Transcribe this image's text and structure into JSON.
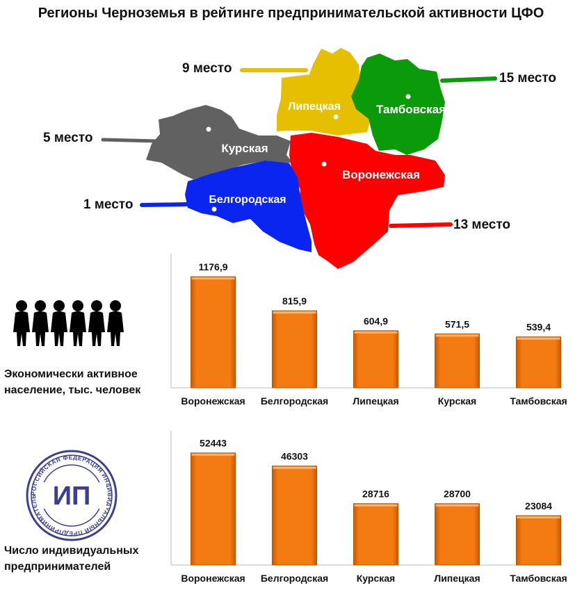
{
  "title": "Регионы Черноземья в рейтинге предпринимательской активности ЦФО",
  "colors": {
    "kursk": "#616161",
    "lipetsk": "#e6bf00",
    "tambov": "#0a9a0a",
    "voronezh": "#ff0000",
    "belgorod": "#0a25f0",
    "bar": "#f47a12"
  },
  "map": {
    "regions": [
      {
        "key": "lipetsk",
        "name": "Липецкая",
        "rank": "9 место"
      },
      {
        "key": "tambov",
        "name": "Тамбовская",
        "rank": "15 место"
      },
      {
        "key": "kursk",
        "name": "Курская",
        "rank": "5 место"
      },
      {
        "key": "voronezh",
        "name": "Воронежская",
        "rank": "13 место"
      },
      {
        "key": "belgorod",
        "name": "Белгородская",
        "rank": "1 место"
      }
    ]
  },
  "population_caption": "Экономически активное население, тыс. человек",
  "ip_caption": "Число индивидуальных предпринимателей",
  "ip_logo": {
    "letters": "ИП",
    "ring_text": "РОССИЙСКАЯ ФЕДЕРАЦИЯ ИНДИВИДУАЛЬНЫЙ ПРЕДПРИНИМАТЕЛЬ ОГРНИП"
  },
  "chart_data": [
    {
      "type": "bar",
      "title": "Экономически активное население, тыс. человек",
      "categories": [
        "Воронежская",
        "Белгородская",
        "Липецкая",
        "Курская",
        "Тамбовская"
      ],
      "values": [
        1176.9,
        815.9,
        604.9,
        571.5,
        539.4
      ],
      "labels": [
        "1176,9",
        "815,9",
        "604,9",
        "571,5",
        "539,4"
      ],
      "xlabel": "",
      "ylabel": "",
      "ylim": [
        0,
        1200
      ]
    },
    {
      "type": "bar",
      "title": "Число индивидуальных предпринимателей",
      "categories": [
        "Воронежская",
        "Белгородская",
        "Курская",
        "Липецкая",
        "Тамбовская"
      ],
      "values": [
        52443,
        46303,
        28716,
        28700,
        23084
      ],
      "labels": [
        "52443",
        "46303",
        "28716",
        "28700",
        "23084"
      ],
      "xlabel": "",
      "ylabel": "",
      "ylim": [
        0,
        53000
      ]
    }
  ]
}
